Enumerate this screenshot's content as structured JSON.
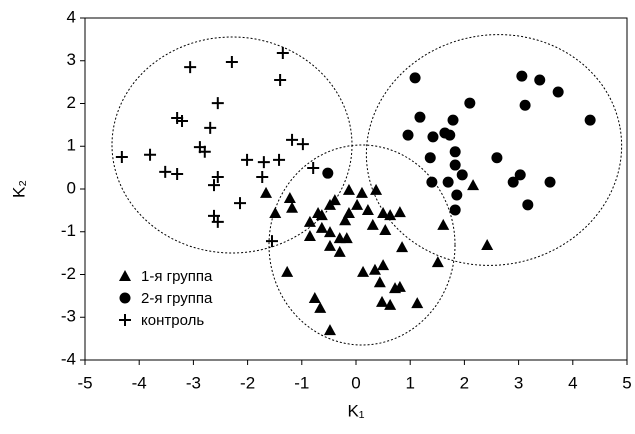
{
  "chart_data": {
    "type": "scatter",
    "xlabel": "K₁",
    "ylabel": "K₂",
    "xlim": [
      -5,
      5
    ],
    "ylim": [
      -4,
      4
    ],
    "xticks": [
      -5,
      -4,
      -3,
      -2,
      -1,
      0,
      1,
      2,
      3,
      4,
      5
    ],
    "yticks": [
      -4,
      -3,
      -2,
      -1,
      0,
      1,
      2,
      3,
      4
    ],
    "grid": false,
    "legend": "lower left",
    "series": [
      {
        "name": "1-я группа",
        "marker": "triangle",
        "color": "#000000",
        "x": [
          -1.66,
          -1.49,
          -1.22,
          -1.18,
          -0.85,
          -0.7,
          -0.63,
          -0.48,
          -0.39,
          -0.13,
          0.11,
          0.37,
          -0.85,
          -0.63,
          -0.48,
          -0.2,
          -0.13,
          0.02,
          0.22,
          0.31,
          0.5,
          0.63,
          0.81,
          -0.17,
          -0.3,
          0.54,
          0.85,
          1.61,
          -1.27,
          -0.48,
          -0.3,
          0.13,
          0.35,
          0.44,
          0.5,
          0.48,
          0.63,
          0.72,
          0.81,
          -0.76,
          -0.66,
          -0.48,
          1.13,
          1.51,
          2.16,
          2.42
        ],
        "y": [
          -0.09,
          -0.56,
          -0.21,
          -0.44,
          -0.77,
          -0.56,
          -0.61,
          -0.37,
          -0.26,
          -0.02,
          -0.09,
          -0.02,
          -1.1,
          -0.91,
          -1.01,
          -0.73,
          -0.56,
          -0.37,
          -0.49,
          -0.84,
          -0.56,
          -0.61,
          -0.54,
          -1.15,
          -1.15,
          -0.96,
          -1.36,
          -0.84,
          -1.94,
          -1.33,
          -1.47,
          -1.94,
          -1.89,
          -2.18,
          -1.78,
          -2.64,
          -2.71,
          -2.32,
          -2.29,
          -2.55,
          -2.78,
          -3.3,
          -2.67,
          -1.71,
          0.09,
          -1.31
        ]
      },
      {
        "name": "2-я группа",
        "marker": "circle",
        "color": "#000000",
        "x": [
          1.09,
          1.18,
          0.96,
          1.42,
          1.64,
          1.79,
          1.73,
          1.83,
          1.37,
          1.4,
          1.7,
          1.83,
          1.86,
          1.96,
          1.83,
          2.1,
          2.6,
          3.06,
          3.12,
          3.39,
          3.73,
          4.32,
          3.03,
          2.9,
          3.17,
          3.58,
          -0.52
        ],
        "y": [
          2.6,
          1.68,
          1.26,
          1.22,
          1.31,
          1.61,
          1.26,
          0.87,
          0.73,
          0.16,
          0.16,
          0.56,
          -0.14,
          0.33,
          -0.49,
          2.01,
          0.73,
          2.64,
          1.96,
          2.55,
          2.27,
          1.61,
          0.33,
          0.16,
          -0.37,
          0.16,
          0.37
        ]
      },
      {
        "name": "контроль",
        "marker": "plus",
        "color": "#000000",
        "x": [
          -4.32,
          -3.8,
          -3.52,
          -3.3,
          -3.3,
          -3.21,
          -3.06,
          -2.88,
          -2.79,
          -2.69,
          -2.55,
          -2.29,
          -2.62,
          -2.55,
          -2.01,
          -1.7,
          -1.42,
          -1.73,
          -2.14,
          -2.62,
          -2.55,
          -1.55,
          -1.35,
          -1.4,
          -1.18,
          -0.98,
          -0.79
        ],
        "y": [
          0.75,
          0.8,
          0.4,
          0.35,
          1.66,
          1.59,
          2.85,
          0.98,
          0.87,
          1.43,
          2.01,
          2.97,
          0.09,
          0.28,
          0.68,
          0.63,
          0.68,
          0.28,
          -0.33,
          -0.63,
          -0.77,
          -1.22,
          3.18,
          2.55,
          1.15,
          1.05,
          0.49
        ]
      }
    ]
  }
}
